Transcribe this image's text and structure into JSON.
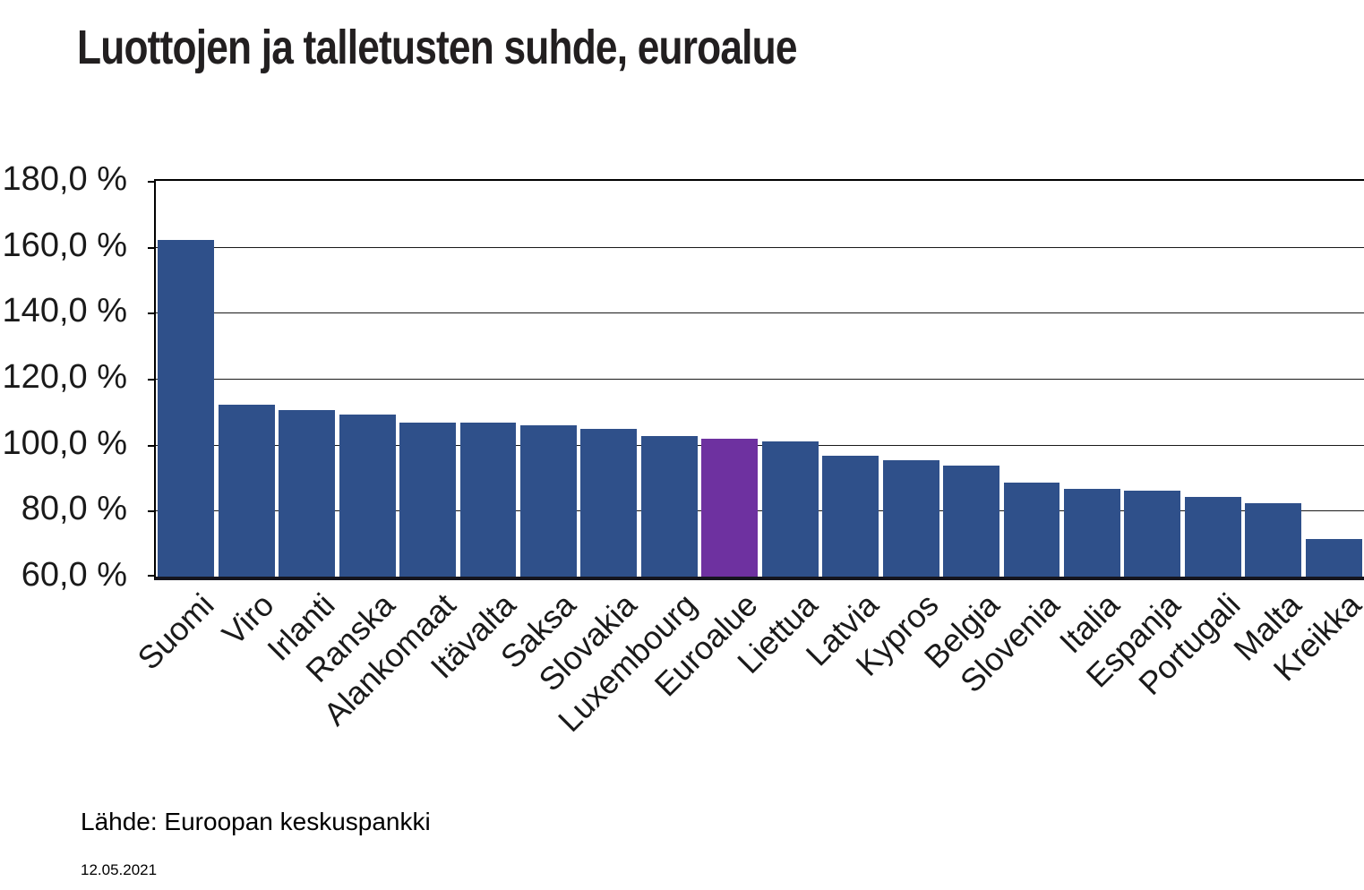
{
  "title": "Luottojen ja talletusten suhde, euroalue",
  "source": "Lähde: Euroopan keskuspankki",
  "date": "12.05.2021",
  "colors": {
    "bar": "#2F508A",
    "highlight": "#6E31A0",
    "gridline": "#1a1a1a",
    "axis": "#15151e",
    "text": "#1a1a1a"
  },
  "chart_data": {
    "type": "bar",
    "title": "Luottojen ja talletusten suhde, euroalue",
    "categories": [
      "Suomi",
      "Viro",
      "Irlanti",
      "Ranska",
      "Alankomaat",
      "Itävalta",
      "Saksa",
      "Slovakia",
      "Luxembourg",
      "Euroalue",
      "Liettua",
      "Latvia",
      "Kypros",
      "Belgia",
      "Slovenia",
      "Italia",
      "Espanja",
      "Portugali",
      "Malta",
      "Kreikka"
    ],
    "values": [
      162.1,
      112.0,
      110.5,
      109.1,
      106.8,
      106.8,
      106.0,
      104.8,
      102.6,
      101.9,
      101.0,
      96.7,
      95.4,
      93.6,
      88.5,
      86.6,
      86.1,
      84.2,
      82.3,
      71.4
    ],
    "highlight_category": "Euroalue",
    "unit": "%",
    "ylim": [
      60,
      180
    ],
    "ytick_step": 20,
    "ytick_labels": [
      "180,0 %",
      "160,0 %",
      "140,0 %",
      "120,0 %",
      "100,0 %",
      "80,0 %",
      "60,0 %"
    ],
    "grid": true,
    "legend": "none"
  }
}
